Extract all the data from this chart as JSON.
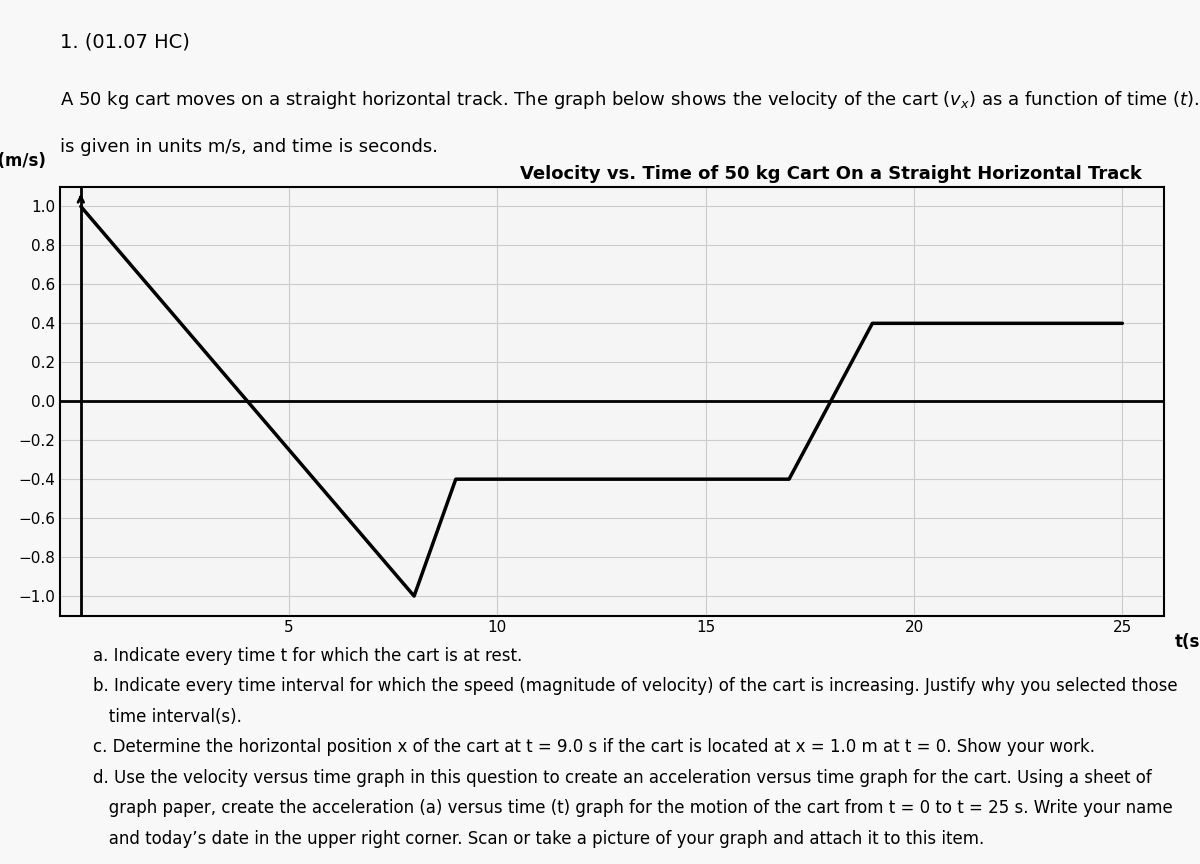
{
  "header": "1. (01.07 HC)",
  "description_line1": "A 50 kg cart moves on a straight horizontal track. The graph below shows the velocity of the cart (vₓ) as a function of time (t). Velocity",
  "description_line2": "is given in units m/s, and time is seconds.",
  "graph_title": "Velocity vs. Time of 50 kg Cart On a Straight Horizontal Track",
  "ylabel": "Vₓ (m/s)",
  "xlabel": "t(s)",
  "time_points": [
    0,
    4,
    8,
    9,
    17,
    19,
    25
  ],
  "velocity_points": [
    1.0,
    0.0,
    -1.0,
    -0.4,
    -0.4,
    0.4,
    0.4
  ],
  "xlim": [
    -0.5,
    26
  ],
  "ylim": [
    -1.1,
    1.1
  ],
  "xticks": [
    0,
    5,
    10,
    15,
    20,
    25
  ],
  "yticks": [
    -1.0,
    -0.8,
    -0.6,
    -0.4,
    -0.2,
    0.0,
    0.2,
    0.4,
    0.6,
    0.8,
    1.0
  ],
  "line_color": "#000000",
  "grid_color": "#cccccc",
  "background_color": "#ffffff",
  "plot_bg_color": "#f5f5f5",
  "questions": [
    "a. Indicate every time t for which the cart is at rest.",
    "b. Indicate every time interval for which the speed (magnitude of velocity) of the cart is increasing. Justify why you selected those",
    "   time interval(s).",
    "c. Determine the horizontal position x of the cart at t = 9.0 s if the cart is located at x = 1.0 m at t = 0. Show your work.",
    "d. Use the velocity versus time graph in this question to create an acceleration versus time graph for the cart. Using a sheet of",
    "   graph paper, create the acceleration (a) versus time (t) graph for the motion of the cart from t = 0 to t = 25 s. Write your name",
    "   and today’s date in the upper right corner. Scan or take a picture of your graph and attach it to this item."
  ],
  "font_size_header": 14,
  "font_size_body": 13,
  "font_size_title": 13,
  "font_size_axis_label": 12,
  "font_size_tick": 11,
  "font_size_question": 12
}
